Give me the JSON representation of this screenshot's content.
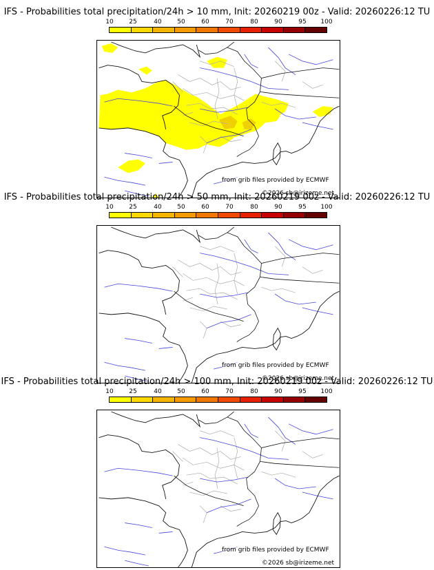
{
  "scale_labels": [
    "10",
    "25",
    "40",
    "50",
    "60",
    "70",
    "80",
    "90",
    "95",
    "100"
  ],
  "scale_colors": [
    "#ffff00",
    "#ffd800",
    "#f5b400",
    "#f59a00",
    "#f07800",
    "#f04a00",
    "#e62000",
    "#c80000",
    "#960000",
    "#640000"
  ],
  "map_colors": {
    "prob_fill": "#ffff00",
    "prob_fill_dark": "#f0d000",
    "rivers": "#4444dd",
    "borders": "#111111",
    "regions": "#aaaaaa"
  },
  "panels": [
    {
      "title": "IFS - Probabilities total precipitation/24h > 10 mm, Init: 20260219 00z - Valid: 20260226:12 TU",
      "credit_source": "from grib files provided by ECMWF",
      "credit_copy": "©2026 sb@irizeme.net"
    },
    {
      "title": "IFS - Probabilities total precipitation/24h > 50 mm, Init: 20260219 00z - Valid: 20260226:12 TU",
      "credit_source": "from grib files provided by ECMWF",
      "credit_copy": "©2026 sb@irizeme.net"
    },
    {
      "title": "IFS - Probabilities total precipitation/24h > 100 mm, Init: 20260219 00z - Valid: 20260226:12 TU",
      "credit_source": "from grib files provided by ECMWF",
      "credit_copy": "©2026 sb@irizeme.net"
    }
  ]
}
